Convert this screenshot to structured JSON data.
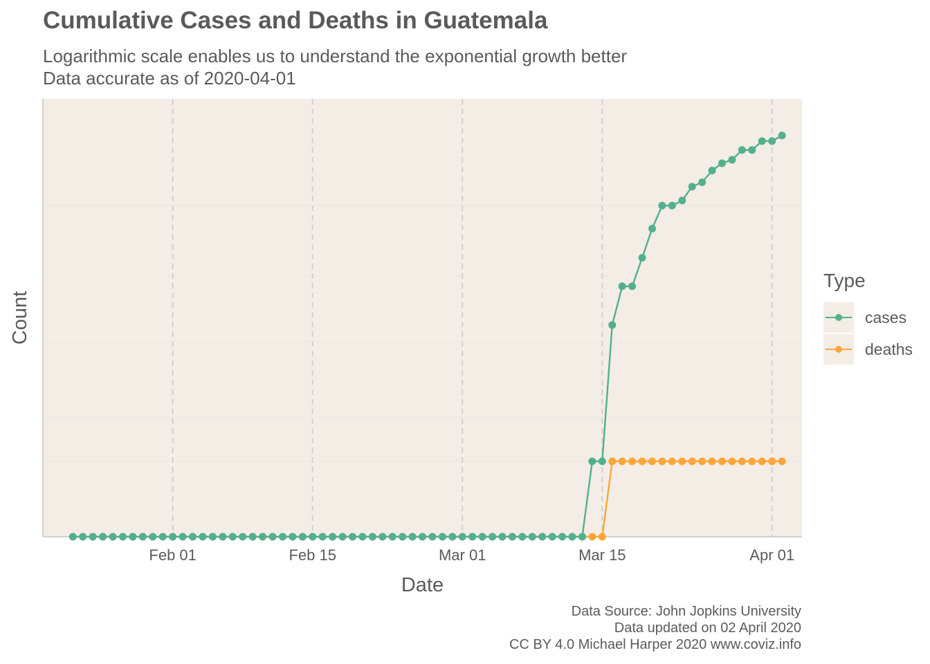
{
  "title": "Cumulative Cases and Deaths in Guatemala",
  "subtitle_lines": [
    "Logarithmic scale enables us to understand the exponential growth better",
    "Data accurate as of 2020-04-01"
  ],
  "caption_lines": [
    "Data Source: John Jopkins University",
    "Data updated on 02 April 2020",
    "CC BY 4.0 Michael Harper 2020 www.coviz.info"
  ],
  "colors": {
    "panel_bg": "#f3ede6",
    "cases": "#52b08e",
    "deaths": "#fca63a",
    "grid_major": "#d2d2d2",
    "grid_minor": "#eae5df",
    "axis": "#d0d0d0",
    "text": "#5a5a5a"
  },
  "chart_data": {
    "type": "line",
    "title": "Cumulative Cases and Deaths in Guatemala",
    "xlabel": "Date",
    "ylabel": "Count",
    "x_scale": "date",
    "y_scale": "log",
    "y_tick_labels_shown": false,
    "x_ticks": [
      "2020-02-01",
      "2020-02-15",
      "2020-03-01",
      "2020-03-15",
      "2020-04-01"
    ],
    "x_tick_labels": [
      "Feb 01",
      "Feb 15",
      "Mar 01",
      "Mar 15",
      "Apr 01"
    ],
    "xlim": [
      "2020-01-19",
      "2020-04-04"
    ],
    "ylim": [
      0,
      55
    ],
    "x_start": "2020-01-22",
    "x_end": "2020-04-01",
    "gridlines": "major x dashed; y minor gridlines",
    "legend": {
      "title": "Type",
      "position": "right",
      "entries": [
        "cases",
        "deaths"
      ]
    },
    "series": [
      {
        "name": "cases",
        "color": "#52b08e",
        "values": [
          0,
          0,
          0,
          0,
          0,
          0,
          0,
          0,
          0,
          0,
          0,
          0,
          0,
          0,
          0,
          0,
          0,
          0,
          0,
          0,
          0,
          0,
          0,
          0,
          0,
          0,
          0,
          0,
          0,
          0,
          0,
          0,
          0,
          0,
          0,
          0,
          0,
          0,
          0,
          0,
          0,
          0,
          0,
          0,
          0,
          0,
          0,
          0,
          0,
          0,
          0,
          0,
          1,
          1,
          6,
          9,
          9,
          12,
          16,
          20,
          20,
          21,
          24,
          25,
          28,
          30,
          31,
          34,
          34,
          37,
          37,
          39
        ]
      },
      {
        "name": "deaths",
        "color": "#fca63a",
        "values": [
          0,
          0,
          0,
          0,
          0,
          0,
          0,
          0,
          0,
          0,
          0,
          0,
          0,
          0,
          0,
          0,
          0,
          0,
          0,
          0,
          0,
          0,
          0,
          0,
          0,
          0,
          0,
          0,
          0,
          0,
          0,
          0,
          0,
          0,
          0,
          0,
          0,
          0,
          0,
          0,
          0,
          0,
          0,
          0,
          0,
          0,
          0,
          0,
          0,
          0,
          0,
          0,
          0,
          0,
          1,
          1,
          1,
          1,
          1,
          1,
          1,
          1,
          1,
          1,
          1,
          1,
          1,
          1,
          1,
          1,
          1,
          1
        ]
      }
    ]
  }
}
